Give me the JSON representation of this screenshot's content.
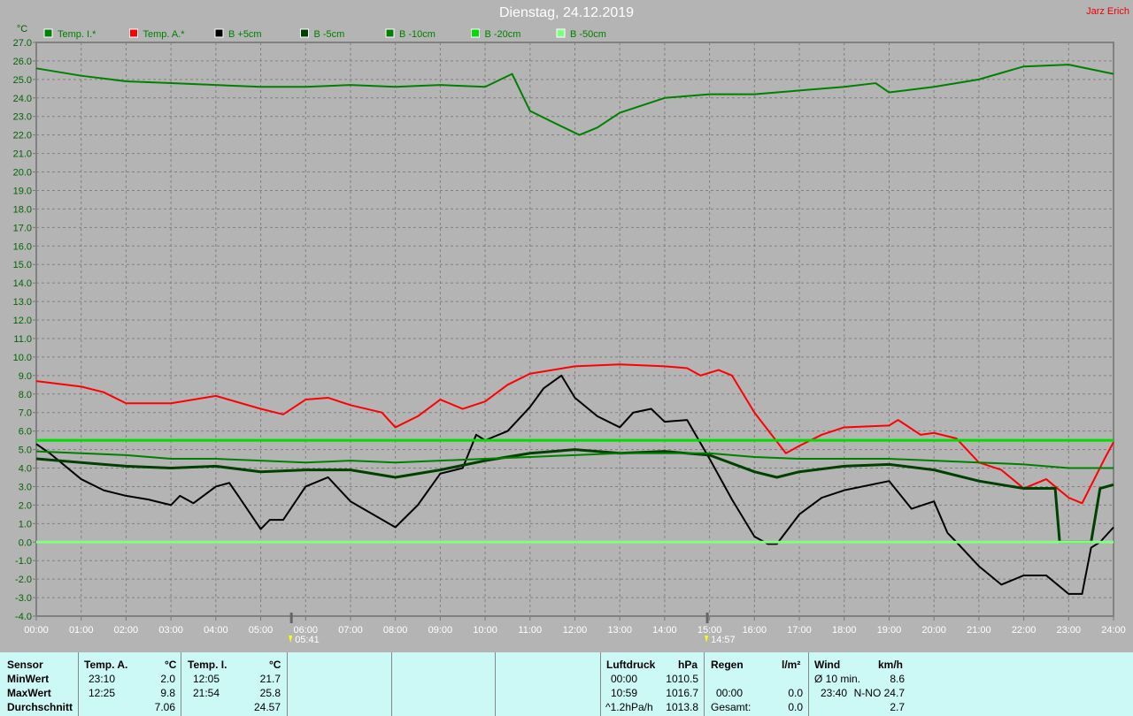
{
  "title": "Dienstag, 24.12.2019",
  "author": "Jarz Erich",
  "chart_data": {
    "type": "line",
    "title": "Dienstag, 24.12.2019",
    "ylabel": "°C",
    "ylim": [
      -4,
      27
    ],
    "yticks": [
      "27.0",
      "26.0",
      "25.0",
      "24.0",
      "23.0",
      "22.0",
      "21.0",
      "20.0",
      "19.0",
      "18.0",
      "17.0",
      "16.0",
      "15.0",
      "14.0",
      "13.0",
      "12.0",
      "11.0",
      "10.0",
      "9.0",
      "8.0",
      "7.0",
      "6.0",
      "5.0",
      "4.0",
      "3.0",
      "2.0",
      "1.0",
      "0.0",
      "-1.0",
      "-2.0",
      "-3.0",
      "-4.0"
    ],
    "xticks": [
      "00:00",
      "01:00",
      "02:00",
      "03:00",
      "04:00",
      "05:00",
      "06:00",
      "07:00",
      "08:00",
      "09:00",
      "10:00",
      "11:00",
      "12:00",
      "13:00",
      "14:00",
      "15:00",
      "16:00",
      "17:00",
      "18:00",
      "19:00",
      "20:00",
      "21:00",
      "22:00",
      "23:00",
      "24:00"
    ],
    "xlim_hours": [
      0,
      24
    ],
    "grid": true,
    "legend": "top",
    "sunrise": "05:41",
    "sunset": "14:57",
    "series": [
      {
        "name": "Temp. I.*",
        "color": "#008000",
        "points": [
          [
            0,
            25.6
          ],
          [
            1,
            25.2
          ],
          [
            2,
            24.9
          ],
          [
            3,
            24.8
          ],
          [
            4,
            24.7
          ],
          [
            5,
            24.6
          ],
          [
            6,
            24.6
          ],
          [
            7,
            24.7
          ],
          [
            8,
            24.6
          ],
          [
            9,
            24.7
          ],
          [
            10,
            24.6
          ],
          [
            10.6,
            25.3
          ],
          [
            11,
            23.3
          ],
          [
            11.5,
            22.7
          ],
          [
            12.1,
            22.0
          ],
          [
            12.5,
            22.4
          ],
          [
            13,
            23.2
          ],
          [
            14,
            24.0
          ],
          [
            15,
            24.2
          ],
          [
            16,
            24.2
          ],
          [
            17,
            24.4
          ],
          [
            18,
            24.6
          ],
          [
            18.7,
            24.8
          ],
          [
            19,
            24.3
          ],
          [
            20,
            24.6
          ],
          [
            21,
            25.0
          ],
          [
            22,
            25.7
          ],
          [
            23,
            25.8
          ],
          [
            24,
            25.3
          ]
        ]
      },
      {
        "name": "Temp. A.*",
        "color": "#ff0000",
        "points": [
          [
            0,
            8.7
          ],
          [
            1,
            8.4
          ],
          [
            1.5,
            8.1
          ],
          [
            2,
            7.5
          ],
          [
            3,
            7.5
          ],
          [
            4,
            7.9
          ],
          [
            5,
            7.2
          ],
          [
            5.5,
            6.9
          ],
          [
            6,
            7.7
          ],
          [
            6.5,
            7.8
          ],
          [
            7,
            7.4
          ],
          [
            7.7,
            7.0
          ],
          [
            8,
            6.2
          ],
          [
            8.5,
            6.8
          ],
          [
            9,
            7.7
          ],
          [
            9.5,
            7.2
          ],
          [
            10,
            7.6
          ],
          [
            10.5,
            8.5
          ],
          [
            11,
            9.1
          ],
          [
            12,
            9.5
          ],
          [
            13,
            9.6
          ],
          [
            14,
            9.5
          ],
          [
            14.5,
            9.4
          ],
          [
            14.8,
            9.0
          ],
          [
            15.2,
            9.3
          ],
          [
            15.5,
            9.0
          ],
          [
            16,
            7.0
          ],
          [
            16.7,
            4.8
          ],
          [
            17,
            5.2
          ],
          [
            17.5,
            5.8
          ],
          [
            18,
            6.2
          ],
          [
            19,
            6.3
          ],
          [
            19.2,
            6.6
          ],
          [
            19.7,
            5.8
          ],
          [
            20,
            5.9
          ],
          [
            20.5,
            5.6
          ],
          [
            21,
            4.3
          ],
          [
            21.5,
            3.9
          ],
          [
            22,
            2.9
          ],
          [
            22.5,
            3.4
          ],
          [
            23,
            2.4
          ],
          [
            23.3,
            2.1
          ],
          [
            23.8,
            4.5
          ],
          [
            24,
            5.4
          ]
        ]
      },
      {
        "name": "B +5cm",
        "color": "#000000",
        "points": [
          [
            0,
            5.3
          ],
          [
            0.3,
            4.8
          ],
          [
            1,
            3.4
          ],
          [
            1.5,
            2.8
          ],
          [
            2,
            2.5
          ],
          [
            2.5,
            2.3
          ],
          [
            3,
            2.0
          ],
          [
            3.2,
            2.5
          ],
          [
            3.5,
            2.1
          ],
          [
            4,
            3.0
          ],
          [
            4.3,
            3.2
          ],
          [
            4.5,
            2.5
          ],
          [
            5,
            0.7
          ],
          [
            5.2,
            1.2
          ],
          [
            5.5,
            1.2
          ],
          [
            6,
            3.0
          ],
          [
            6.5,
            3.5
          ],
          [
            7,
            2.2
          ],
          [
            7.5,
            1.5
          ],
          [
            8,
            0.8
          ],
          [
            8.5,
            2.0
          ],
          [
            9,
            3.7
          ],
          [
            9.5,
            4.0
          ],
          [
            9.8,
            5.8
          ],
          [
            10,
            5.5
          ],
          [
            10.5,
            6.0
          ],
          [
            11,
            7.3
          ],
          [
            11.3,
            8.3
          ],
          [
            11.7,
            9.0
          ],
          [
            12,
            7.8
          ],
          [
            12.5,
            6.8
          ],
          [
            13,
            6.2
          ],
          [
            13.3,
            7.0
          ],
          [
            13.7,
            7.2
          ],
          [
            14,
            6.5
          ],
          [
            14.5,
            6.6
          ],
          [
            15,
            4.5
          ],
          [
            15.5,
            2.3
          ],
          [
            16,
            0.3
          ],
          [
            16.3,
            -0.1
          ],
          [
            16.5,
            -0.1
          ],
          [
            17,
            1.5
          ],
          [
            17.5,
            2.4
          ],
          [
            18,
            2.8
          ],
          [
            19,
            3.3
          ],
          [
            19.5,
            1.8
          ],
          [
            20,
            2.2
          ],
          [
            20.3,
            0.5
          ],
          [
            20.5,
            0
          ],
          [
            21,
            -1.3
          ],
          [
            21.5,
            -2.3
          ],
          [
            22,
            -1.8
          ],
          [
            22.5,
            -1.8
          ],
          [
            23,
            -2.8
          ],
          [
            23.3,
            -2.8
          ],
          [
            23.5,
            -0.3
          ],
          [
            23.7,
            0
          ],
          [
            24,
            0.8
          ]
        ]
      },
      {
        "name": "B -5cm",
        "color": "#004000",
        "points": [
          [
            0,
            4.5
          ],
          [
            1,
            4.3
          ],
          [
            2,
            4.1
          ],
          [
            3,
            4.0
          ],
          [
            4,
            4.1
          ],
          [
            5,
            3.8
          ],
          [
            6,
            3.9
          ],
          [
            7,
            3.9
          ],
          [
            8,
            3.5
          ],
          [
            9,
            3.9
          ],
          [
            10,
            4.4
          ],
          [
            11,
            4.8
          ],
          [
            12,
            5.0
          ],
          [
            13,
            4.8
          ],
          [
            14,
            4.9
          ],
          [
            15,
            4.7
          ],
          [
            16,
            3.8
          ],
          [
            16.5,
            3.5
          ],
          [
            17,
            3.8
          ],
          [
            18,
            4.1
          ],
          [
            19,
            4.2
          ],
          [
            20,
            3.9
          ],
          [
            21,
            3.3
          ],
          [
            22,
            2.9
          ],
          [
            22.7,
            2.9
          ],
          [
            22.8,
            0.0
          ],
          [
            23.5,
            0.0
          ],
          [
            23.7,
            2.9
          ],
          [
            24,
            3.1
          ]
        ]
      },
      {
        "name": "B -10cm",
        "color": "#008000",
        "points": [
          [
            0,
            4.9
          ],
          [
            1,
            4.8
          ],
          [
            2,
            4.7
          ],
          [
            3,
            4.5
          ],
          [
            4,
            4.5
          ],
          [
            5,
            4.4
          ],
          [
            6,
            4.3
          ],
          [
            7,
            4.4
          ],
          [
            8,
            4.3
          ],
          [
            9,
            4.4
          ],
          [
            10,
            4.5
          ],
          [
            11,
            4.6
          ],
          [
            12,
            4.7
          ],
          [
            13,
            4.8
          ],
          [
            14,
            4.8
          ],
          [
            15,
            4.8
          ],
          [
            16,
            4.6
          ],
          [
            17,
            4.5
          ],
          [
            18,
            4.5
          ],
          [
            19,
            4.5
          ],
          [
            20,
            4.4
          ],
          [
            21,
            4.3
          ],
          [
            22,
            4.2
          ],
          [
            23,
            4.0
          ],
          [
            24,
            4.0
          ]
        ]
      },
      {
        "name": "B -20cm",
        "color": "#00dd00",
        "points": [
          [
            0,
            5.5
          ],
          [
            24,
            5.5
          ]
        ]
      },
      {
        "name": "B -50cm",
        "color": "#80ff80",
        "points": [
          [
            0,
            0.0
          ],
          [
            24,
            0.0
          ]
        ]
      }
    ]
  },
  "table": {
    "sensor": "Sensor",
    "min": "MinWert",
    "max": "MaxWert",
    "avg": "Durchschnitt",
    "ta": {
      "head": "Temp. A.",
      "unit": "°C",
      "min_time": "23:10",
      "min": "2.0",
      "max_time": "12:25",
      "max": "9.8",
      "avg": "7.06"
    },
    "ti": {
      "head": "Temp. I.",
      "unit": "°C",
      "min_time": "12:05",
      "min": "21.7",
      "max_time": "21:54",
      "max": "25.8",
      "avg": "24.57"
    },
    "press": {
      "head": "Luftdruck",
      "unit": "hPa",
      "t1": "00:00",
      "v1": "1010.5",
      "t2": "10:59",
      "v2": "1016.7",
      "t3": "^1.2hPa/h",
      "v3": "1013.8"
    },
    "rain": {
      "head": "Regen",
      "unit": "l/m²",
      "t2": "00:00",
      "v2": "0.0",
      "t3": "Gesamt:",
      "v3": "0.0"
    },
    "wind": {
      "head": "Wind",
      "unit": "km/h",
      "t1": "Ø 10 min.",
      "v1": "8.6",
      "t2": "23:40",
      "v2": "N-NO 24.7",
      "v3": "2.7"
    }
  }
}
